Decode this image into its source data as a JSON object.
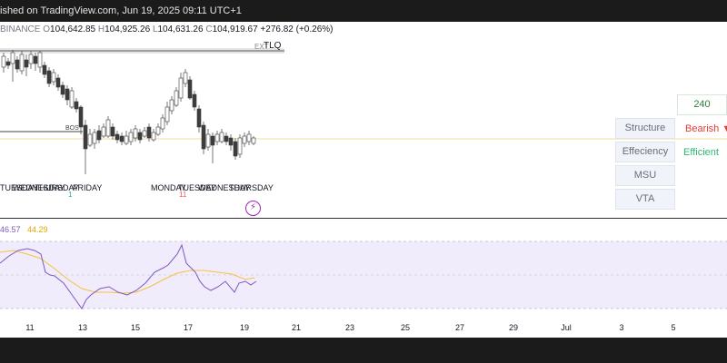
{
  "header": {
    "publish_text": "ished on TradingView.com, Jun 19, 2025 09:11 UTC+1"
  },
  "ohlc": {
    "exchange": "BINANCE",
    "open_label": "O",
    "open": "104,642.85",
    "high_label": "H",
    "high": "104,925.26",
    "low_label": "L",
    "low": "104,631.26",
    "close_label": "C",
    "close": "104,919.67",
    "change": "+276.82 (+0.26%)"
  },
  "annotations": {
    "tlq": "TLQ",
    "ext": "EXT",
    "bos": "BOS",
    "marker_green": "1",
    "marker_red": "11"
  },
  "day_labels": [
    "TUESDAY",
    "WEDNESDAY",
    "THURSDAY",
    "FRIDAY",
    "MONDAY",
    "TUESDAY",
    "WEDNESDAY",
    "THURSDAY"
  ],
  "side_panel": {
    "value": "240",
    "rows": [
      {
        "label": "Structure",
        "status": "Bearish ▼",
        "status_color": "#e53935"
      },
      {
        "label": "Effeciency",
        "status": "Efficient",
        "status_color": "#2bb673"
      },
      {
        "label": "MSU",
        "status": "",
        "status_color": ""
      },
      {
        "label": "VTA",
        "status": "",
        "status_color": ""
      }
    ]
  },
  "rsi": {
    "value1": "46.57",
    "value2": "44.29",
    "color1": "#7e57c2",
    "color2": "#f5c242"
  },
  "x_axis": {
    "ticks": [
      "11",
      "13",
      "15",
      "17",
      "19",
      "21",
      "23",
      "25",
      "27",
      "29",
      "Jul",
      "3",
      "5"
    ]
  },
  "icons": {
    "flash": "flash-icon"
  }
}
